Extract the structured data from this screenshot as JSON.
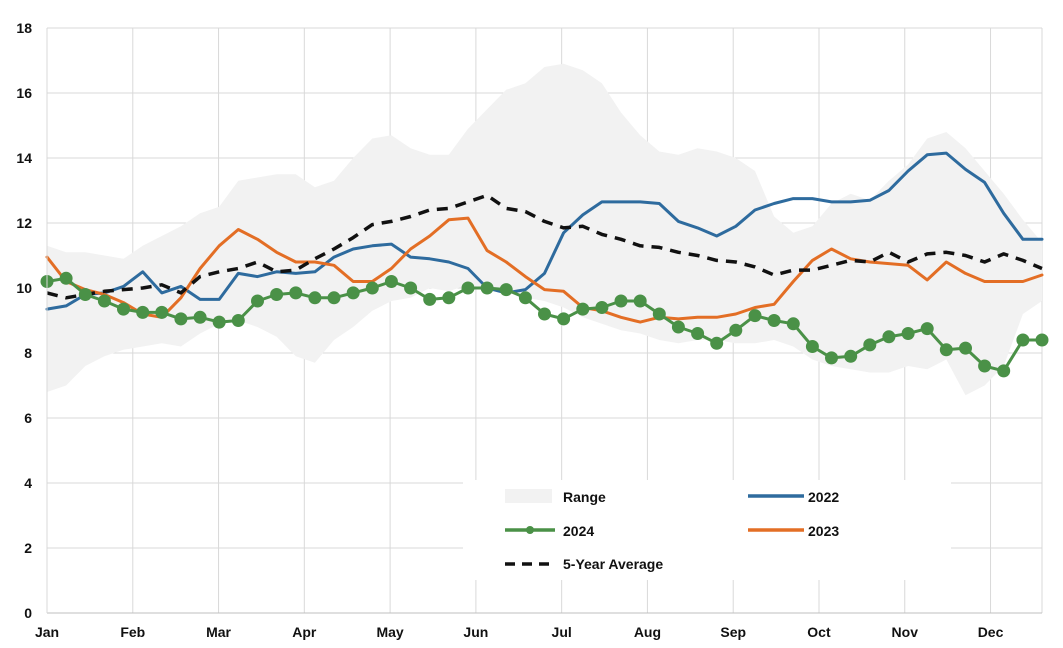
{
  "chart_data": {
    "type": "line",
    "title": "",
    "xlabel": "",
    "ylabel": "",
    "ylim": [
      0,
      18
    ],
    "yticks": [
      0,
      2,
      4,
      6,
      8,
      10,
      12,
      14,
      16,
      18
    ],
    "months": [
      "Jan",
      "Feb",
      "Mar",
      "Apr",
      "May",
      "Jun",
      "Jul",
      "Aug",
      "Sep",
      "Oct",
      "Nov",
      "Dec"
    ],
    "grid": true,
    "weeks": 53,
    "range": {
      "name": "Range",
      "color": "#f2f2f2",
      "high": [
        11.3,
        11.1,
        11.1,
        11.0,
        10.9,
        11.3,
        11.6,
        11.9,
        12.3,
        12.5,
        13.3,
        13.4,
        13.5,
        13.5,
        13.1,
        13.3,
        14.0,
        14.6,
        14.7,
        14.3,
        14.1,
        14.1,
        14.9,
        15.5,
        16.1,
        16.3,
        16.8,
        16.9,
        16.7,
        16.3,
        15.4,
        14.7,
        14.2,
        14.1,
        14.3,
        14.2,
        14.0,
        13.6,
        12.2,
        11.7,
        11.9,
        12.6,
        12.9,
        12.7,
        13.3,
        13.8,
        14.6,
        14.8,
        14.3,
        13.6,
        12.9,
        12.1,
        11.4
      ],
      "low": [
        6.8,
        7.0,
        7.6,
        7.9,
        8.1,
        8.2,
        8.3,
        8.2,
        8.6,
        8.9,
        9.0,
        8.8,
        8.5,
        7.9,
        7.7,
        8.4,
        8.8,
        9.3,
        9.6,
        9.7,
        10.0,
        9.9,
        10.1,
        10.0,
        10.0,
        9.7,
        9.6,
        9.4,
        9.1,
        8.9,
        8.7,
        8.6,
        8.4,
        8.3,
        8.4,
        8.4,
        8.3,
        8.3,
        8.4,
        8.2,
        7.8,
        7.6,
        7.5,
        7.4,
        7.4,
        7.6,
        7.5,
        7.8,
        6.7,
        7.0,
        7.6,
        9.2,
        9.6
      ]
    },
    "series": [
      {
        "name": "2022",
        "color": "#2e6b9e",
        "values": [
          9.35,
          9.45,
          9.8,
          9.85,
          10.05,
          10.5,
          9.85,
          10.05,
          9.65,
          9.65,
          10.45,
          10.35,
          10.5,
          10.45,
          10.5,
          10.95,
          11.2,
          11.3,
          11.35,
          10.95,
          10.9,
          10.8,
          10.6,
          10.0,
          9.85,
          9.95,
          10.45,
          11.7,
          12.25,
          12.65,
          12.65,
          12.65,
          12.6,
          12.05,
          11.85,
          11.6,
          11.9,
          12.4,
          12.6,
          12.75,
          12.75,
          12.65,
          12.65,
          12.7,
          13.0,
          13.6,
          14.1,
          14.15,
          13.65,
          13.25,
          12.3,
          11.5,
          11.5
        ]
      },
      {
        "name": "2023",
        "color": "#e36e25",
        "values": [
          10.95,
          10.2,
          9.95,
          9.8,
          9.55,
          9.2,
          9.1,
          9.7,
          10.6,
          11.3,
          11.8,
          11.5,
          11.1,
          10.8,
          10.8,
          10.7,
          10.2,
          10.2,
          10.6,
          11.2,
          11.6,
          12.1,
          12.15,
          11.15,
          10.8,
          10.35,
          9.95,
          9.9,
          9.4,
          9.3,
          9.1,
          8.95,
          9.1,
          9.05,
          9.1,
          9.1,
          9.2,
          9.4,
          9.5,
          10.2,
          10.85,
          11.2,
          10.9,
          10.8,
          10.75,
          10.7,
          10.25,
          10.8,
          10.45,
          10.2,
          10.2,
          10.2,
          10.4
        ]
      },
      {
        "name": "2024",
        "color": "#4a9147",
        "markers": true,
        "values": [
          10.2,
          10.3,
          9.8,
          9.6,
          9.35,
          9.25,
          9.25,
          9.05,
          9.1,
          8.95,
          9.0,
          9.6,
          9.8,
          9.85,
          9.7,
          9.7,
          9.85,
          10.0,
          10.2,
          10.0,
          9.65,
          9.7,
          10.0,
          10.0,
          9.95,
          9.7,
          9.2,
          9.05,
          9.35,
          9.4,
          9.6,
          9.6,
          9.2,
          8.8,
          8.6,
          8.3,
          8.7,
          9.15,
          9.0,
          8.9,
          8.2,
          7.85,
          7.9,
          8.25,
          8.5,
          8.6,
          8.75,
          8.1,
          8.15,
          7.6,
          7.45,
          8.4,
          8.4
        ]
      },
      {
        "name": "5-Year Average",
        "color": "#111111",
        "dashed": true,
        "values": [
          9.85,
          9.7,
          9.8,
          9.9,
          9.95,
          10.0,
          10.1,
          9.85,
          10.35,
          10.5,
          10.6,
          10.8,
          10.5,
          10.55,
          10.9,
          11.2,
          11.55,
          11.95,
          12.05,
          12.2,
          12.4,
          12.45,
          12.65,
          12.85,
          12.45,
          12.35,
          12.05,
          11.85,
          11.9,
          11.65,
          11.5,
          11.3,
          11.25,
          11.1,
          11.0,
          10.85,
          10.8,
          10.65,
          10.4,
          10.55,
          10.55,
          10.7,
          10.85,
          10.8,
          11.1,
          10.8,
          11.05,
          11.1,
          11.0,
          10.8,
          11.05,
          10.85,
          10.6
        ]
      }
    ],
    "legend": {
      "range_label": "Range",
      "s2022_label": "2022",
      "s2024_label": "2024",
      "s2023_label": "2023",
      "avg_label": "5-Year Average"
    }
  }
}
